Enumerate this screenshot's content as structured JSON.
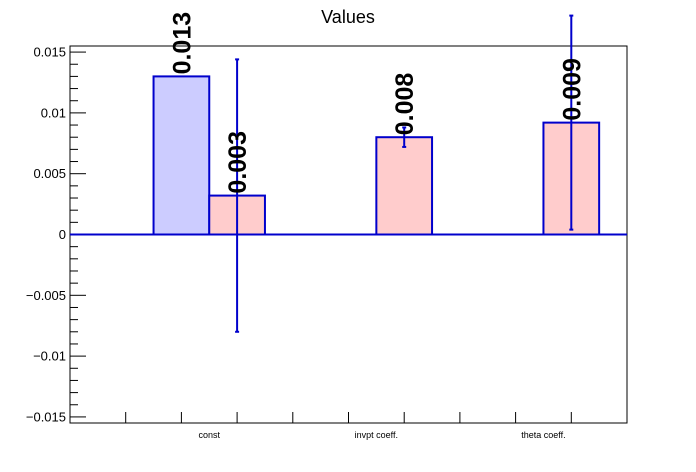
{
  "chart_data": {
    "type": "bar",
    "title": "Values",
    "categories": [
      "const",
      "invpt coeff.",
      "theta coeff."
    ],
    "ylim": [
      -0.0155,
      0.0155
    ],
    "yticks": [
      {
        "value": 0.015,
        "label": "0.015"
      },
      {
        "value": 0.01,
        "label": "0.01"
      },
      {
        "value": 0.005,
        "label": "0.005"
      },
      {
        "value": 0,
        "label": "0"
      },
      {
        "value": -0.005,
        "label": "−0.005"
      },
      {
        "value": -0.01,
        "label": "−0.01"
      },
      {
        "value": -0.015,
        "label": "−0.015"
      }
    ],
    "series": [
      {
        "fill": "#ccccff",
        "stroke": "#0000cc",
        "bars": [
          {
            "category": 0,
            "value": 0.013,
            "label": "0.013",
            "error": null
          }
        ]
      },
      {
        "fill": "#ffcccc",
        "stroke": "#0000cc",
        "bars": [
          {
            "category": 0,
            "value": 0.0032,
            "label": "0.003",
            "error": 0.0112
          },
          {
            "category": 1,
            "value": 0.008,
            "label": "0.008",
            "error": 0.0008
          },
          {
            "category": 2,
            "value": 0.0092,
            "label": "0.009",
            "error": 0.0088
          }
        ]
      }
    ],
    "zero_line_color": "#0000cc",
    "grid": false,
    "legend": "none"
  }
}
